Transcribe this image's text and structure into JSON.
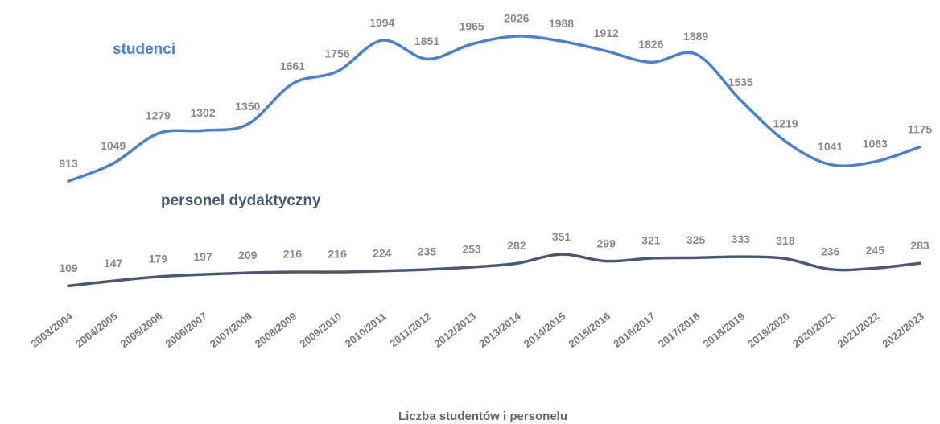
{
  "chart_data": {
    "type": "line",
    "x_label": "Liczba studentów i personelu",
    "categories": [
      "2003/2004",
      "2004/2005",
      "2005/2006",
      "2006/2007",
      "2007/2008",
      "2008/2009",
      "2009/2010",
      "2010/2011",
      "2011/2012",
      "2012/2013",
      "2013/2014",
      "2014/2015",
      "2015/2016",
      "2016/2017",
      "2017/2018",
      "2018/2019",
      "2019/2020",
      "2020/2021",
      "2021/2022",
      "2022/2023"
    ],
    "series": [
      {
        "name": "studenci",
        "color": "#4a7fd6",
        "values": [
          913,
          1049,
          1279,
          1302,
          1350,
          1661,
          1756,
          1994,
          1851,
          1965,
          2026,
          1988,
          1912,
          1826,
          1889,
          1535,
          1219,
          1041,
          1063,
          1175
        ]
      },
      {
        "name": "personel dydaktyczny",
        "color": "#4b5874",
        "values": [
          109,
          147,
          179,
          197,
          209,
          216,
          216,
          224,
          235,
          253,
          282,
          351,
          299,
          321,
          325,
          333,
          318,
          236,
          245,
          283
        ]
      }
    ]
  }
}
